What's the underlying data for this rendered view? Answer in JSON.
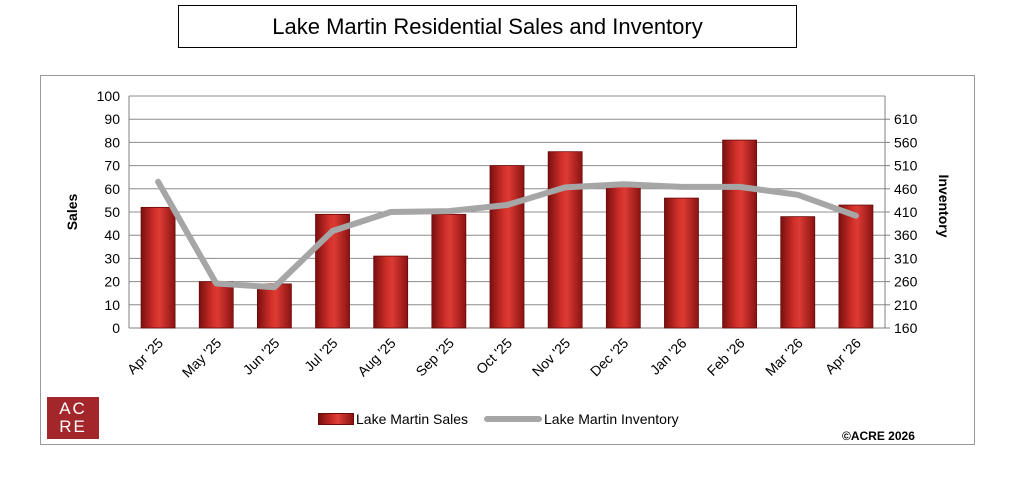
{
  "title": "Lake Martin Residential Sales and Inventory",
  "logo_line1": "AC",
  "logo_line2": "RE",
  "copyright": "©ACRE 2026",
  "colors": {
    "bar": "#c0201c",
    "line": "#a6a6a6",
    "logo": "#a3262a"
  },
  "chart_data": {
    "type": "bar",
    "categories": [
      "Apr '25",
      "May '25",
      "Jun '25",
      "Jul '25",
      "Aug '25",
      "Sep '25",
      "Oct '25",
      "Nov '25",
      "Dec '25",
      "Jan '26",
      "Feb '26",
      "Mar '26",
      "Apr '26"
    ],
    "series": [
      {
        "name": "Lake Martin Sales",
        "type": "bar",
        "axis": "left",
        "values": [
          52,
          20,
          19,
          49,
          31,
          49,
          70,
          76,
          61,
          56,
          81,
          48,
          53
        ]
      },
      {
        "name": "Lake Martin Inventory",
        "type": "line",
        "axis": "right",
        "values": [
          475,
          256,
          248,
          369,
          410,
          412,
          425,
          463,
          470,
          464,
          464,
          447,
          402
        ]
      }
    ],
    "ylabel": "Sales",
    "y2label": "Inventory",
    "ylim": [
      0,
      100
    ],
    "y2lim": [
      160,
      660
    ],
    "yticks": [
      0,
      10,
      20,
      30,
      40,
      50,
      60,
      70,
      80,
      90,
      100
    ],
    "y2ticks": [
      160,
      210,
      260,
      310,
      360,
      410,
      460,
      510,
      560,
      610
    ],
    "grid": true,
    "legend": "bottom"
  }
}
